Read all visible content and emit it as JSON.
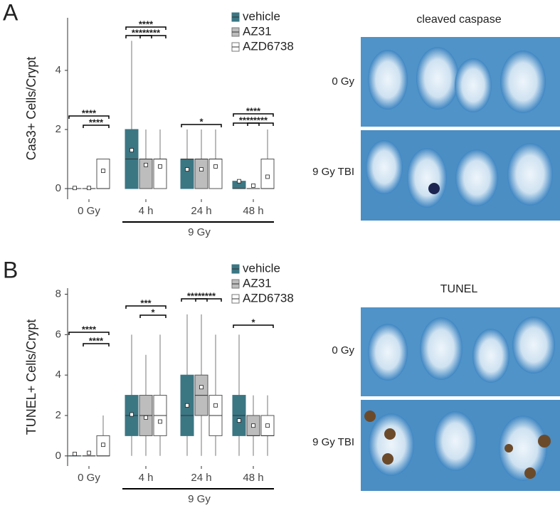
{
  "chart_data": [
    {
      "type": "box",
      "panel_label": "A",
      "ylabel": "Cas3+ Cells/Crypt",
      "categories": [
        "0 Gy",
        "4 h",
        "24 h",
        "48 h"
      ],
      "group_label": "9 Gy",
      "ylim": [
        -0.36,
        5.78
      ],
      "yticks": [
        0,
        2,
        4
      ],
      "series": [
        {
          "name": "vehicle",
          "color": "#3b7683",
          "whisker_low": [
            0,
            0,
            0,
            0
          ],
          "q1": [
            0,
            0,
            0,
            0
          ],
          "median": [
            0,
            1,
            1,
            0
          ],
          "q3": [
            0,
            2,
            1,
            0.25
          ],
          "whisker_high": [
            0,
            5,
            2,
            0.25
          ],
          "mean": [
            0.02,
            1.3,
            0.65,
            0.25
          ]
        },
        {
          "name": "AZ31",
          "color": "#bdbdbd",
          "whisker_low": [
            0,
            0,
            0,
            0
          ],
          "q1": [
            0,
            0,
            0,
            0
          ],
          "median": [
            0,
            1,
            1,
            0
          ],
          "q3": [
            0,
            1,
            1,
            0
          ],
          "whisker_high": [
            0,
            2,
            2,
            0
          ],
          "mean": [
            0.02,
            0.8,
            0.65,
            0.1
          ]
        },
        {
          "name": "AZD6738",
          "color": "#ffffff",
          "whisker_low": [
            0,
            0,
            0,
            0
          ],
          "q1": [
            0,
            0,
            0,
            0
          ],
          "median": [
            0,
            1,
            1,
            0
          ],
          "q3": [
            1,
            1,
            1,
            1
          ],
          "whisker_high": [
            1,
            2,
            2,
            2
          ],
          "mean": [
            0.6,
            0.75,
            0.75,
            0.4
          ]
        }
      ],
      "significance": [
        "****",
        "****",
        "****",
        "****",
        "****",
        "*",
        "****",
        "****",
        "****"
      ],
      "image_title": "cleaved caspase",
      "image_rows": [
        "0 Gy",
        "9 Gy TBI"
      ]
    },
    {
      "type": "box",
      "panel_label": "B",
      "ylabel": "TUNEL+ Cells/Crypt",
      "categories": [
        "0 Gy",
        "4 h",
        "24 h",
        "48 h"
      ],
      "group_label": "9 Gy",
      "ylim": [
        -0.5,
        8.3
      ],
      "yticks": [
        0,
        2,
        4,
        6,
        8
      ],
      "series": [
        {
          "name": "vehicle",
          "color": "#3b7683",
          "whisker_low": [
            0,
            0,
            0,
            0
          ],
          "q1": [
            0,
            1,
            1,
            1
          ],
          "median": [
            0,
            2,
            2,
            2
          ],
          "q3": [
            0,
            3,
            4,
            3
          ],
          "whisker_high": [
            0,
            6,
            7,
            6
          ],
          "mean": [
            0.1,
            2.05,
            2.5,
            1.75
          ]
        },
        {
          "name": "AZ31",
          "color": "#bdbdbd",
          "whisker_low": [
            0,
            0,
            0,
            0
          ],
          "q1": [
            0,
            1,
            2,
            1
          ],
          "median": [
            0,
            2,
            3,
            1
          ],
          "q3": [
            0,
            3,
            4,
            2
          ],
          "whisker_high": [
            0,
            5,
            7,
            3
          ],
          "mean": [
            0.15,
            1.9,
            3.4,
            1.5
          ]
        },
        {
          "name": "AZD6738",
          "color": "#ffffff",
          "whisker_low": [
            0,
            0,
            0,
            0
          ],
          "q1": [
            0,
            1,
            1,
            1
          ],
          "median": [
            0,
            2,
            2,
            1
          ],
          "q3": [
            1,
            3,
            3,
            2
          ],
          "whisker_high": [
            2,
            6,
            6,
            3
          ],
          "mean": [
            0.55,
            1.7,
            2.5,
            1.5
          ]
        }
      ],
      "significance": [
        "****",
        "****",
        "***",
        "*",
        "****",
        "****",
        "*"
      ],
      "image_title": "TUNEL",
      "image_rows": [
        "0 Gy",
        "9 Gy TBI"
      ]
    }
  ]
}
